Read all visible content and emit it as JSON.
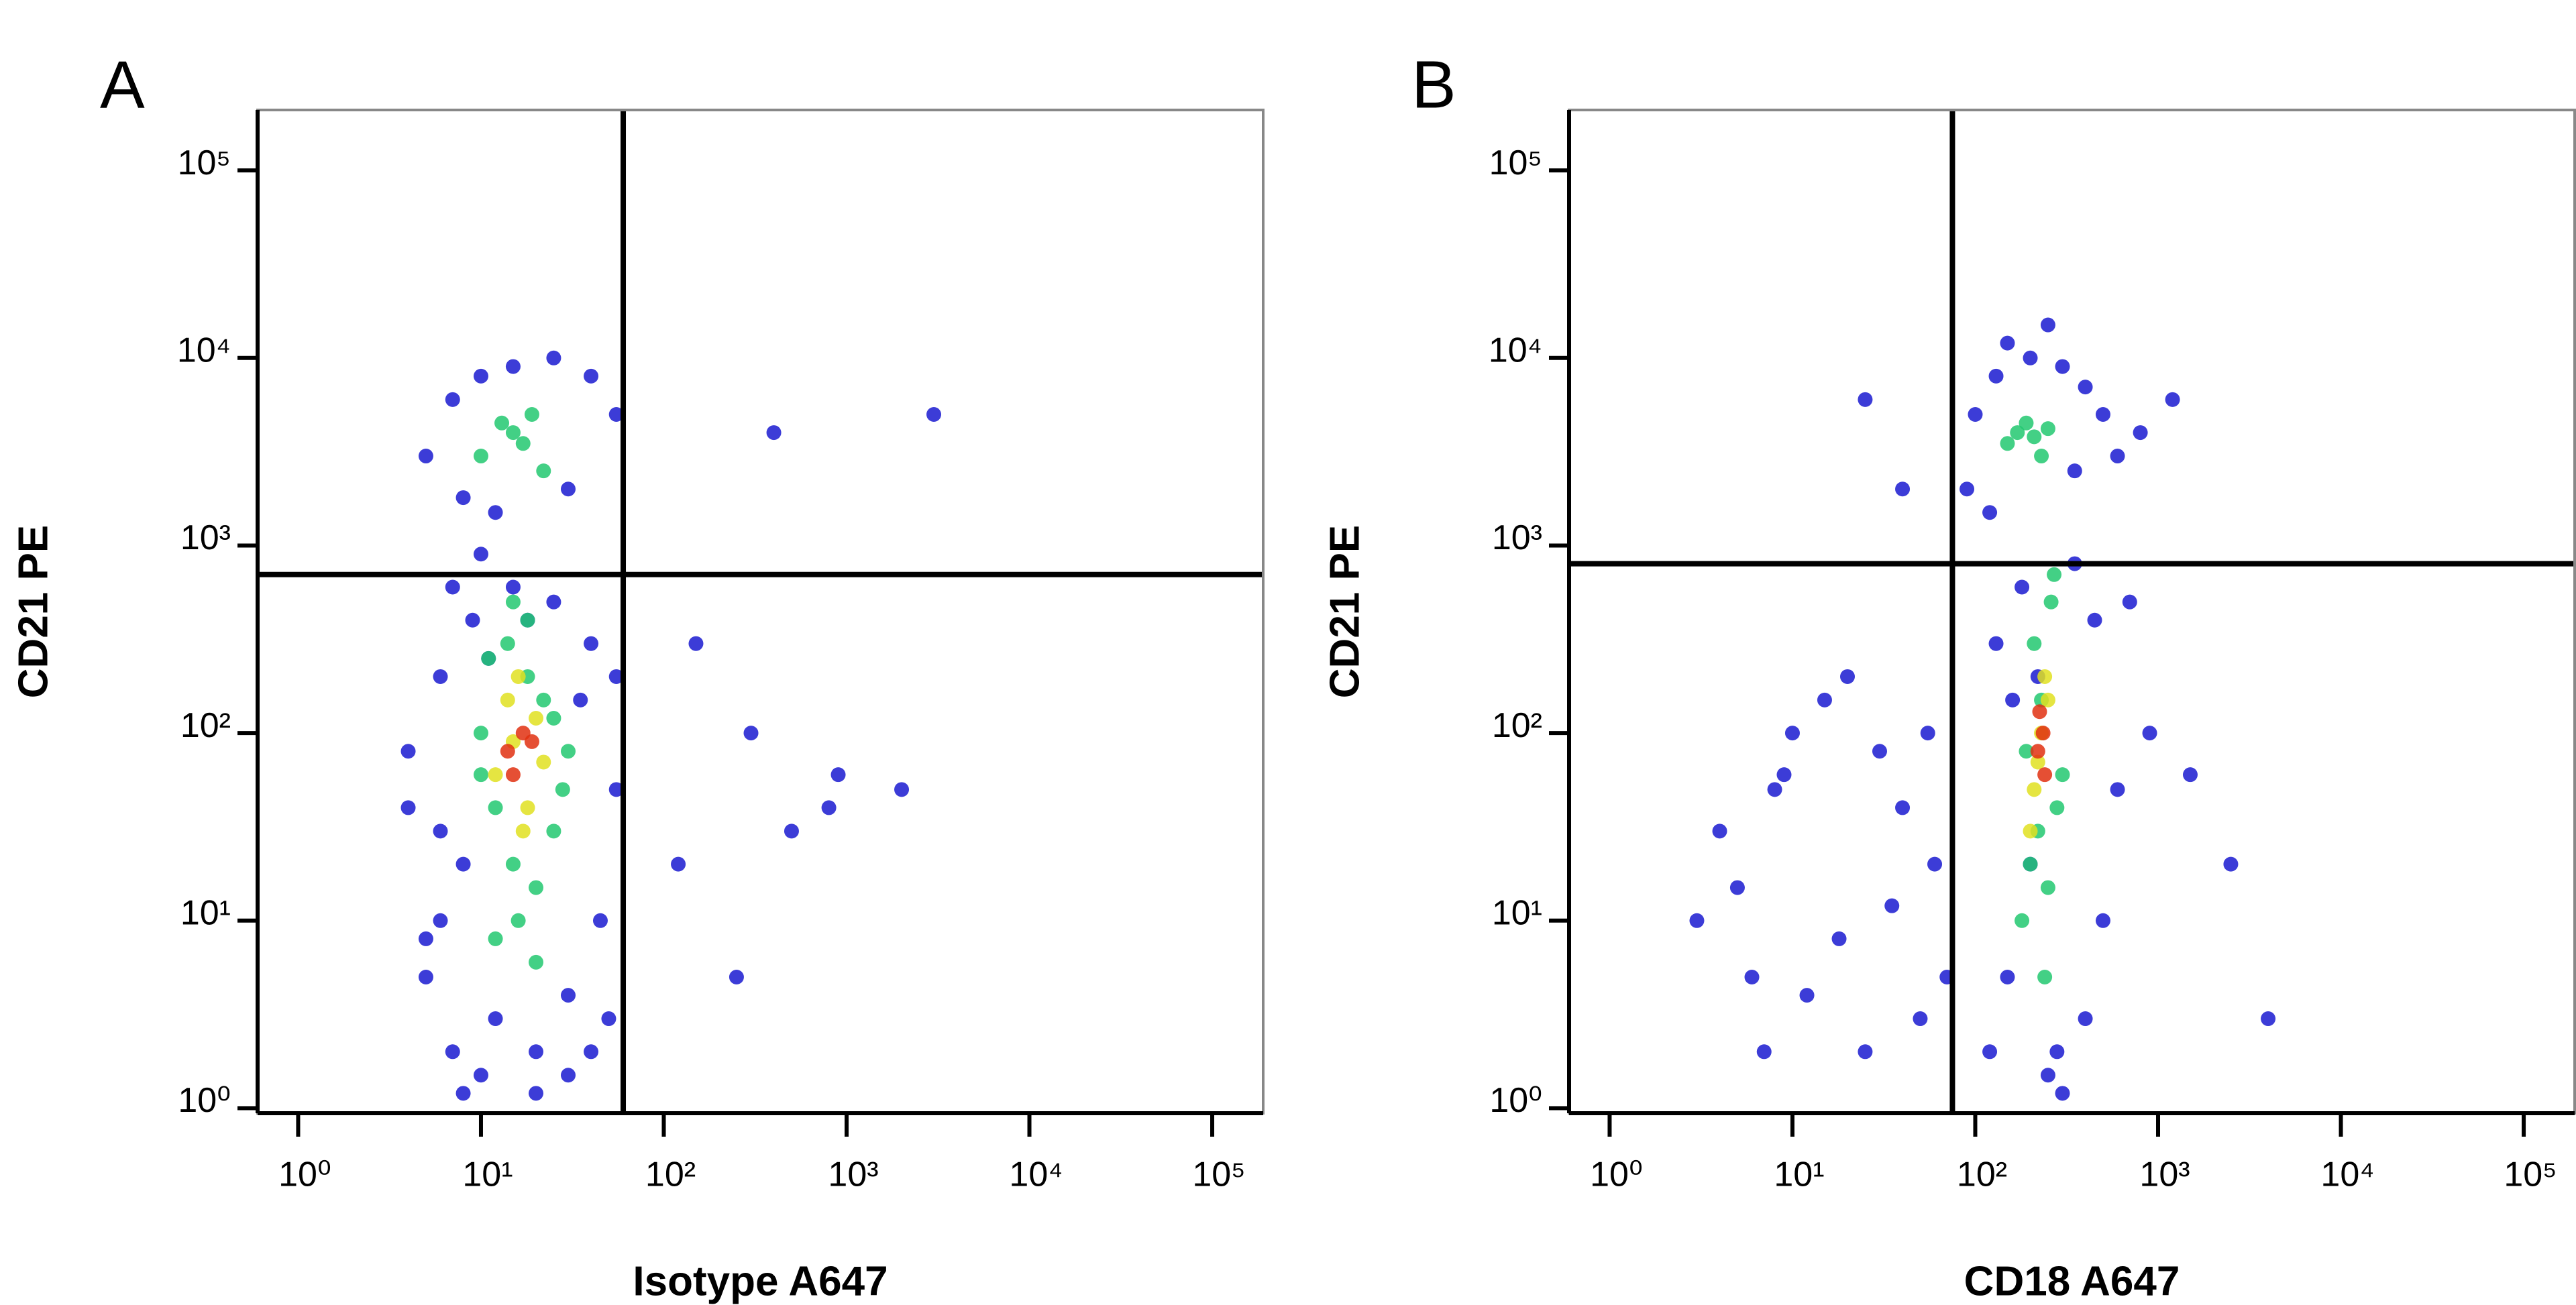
{
  "chart_data": [
    {
      "type": "scatter",
      "panel_label": "A",
      "xlabel": "Isotype A647",
      "ylabel": "CD21 PE",
      "log_x": true,
      "log_y": true,
      "xlim": [
        0.6,
        190000
      ],
      "ylim": [
        0.94,
        210000
      ],
      "xticks": [
        {
          "value": 1,
          "label": "10⁰"
        },
        {
          "value": 10,
          "label": "10¹"
        },
        {
          "value": 100,
          "label": "10²"
        },
        {
          "value": 1000,
          "label": "10³"
        },
        {
          "value": 10000,
          "label": "10⁴"
        },
        {
          "value": 100000,
          "label": "10⁵"
        }
      ],
      "yticks": [
        {
          "value": 1,
          "label": "10⁰"
        },
        {
          "value": 10,
          "label": "10¹"
        },
        {
          "value": 100,
          "label": "10²"
        },
        {
          "value": 1000,
          "label": "10³"
        },
        {
          "value": 10000,
          "label": "10⁴"
        },
        {
          "value": 100000,
          "label": "10⁵"
        }
      ],
      "quadrant": {
        "x": 60,
        "y": 700
      },
      "series": [
        {
          "color": "#1a1ad0",
          "x": [
            4,
            6,
            8,
            5,
            7,
            10,
            12,
            20,
            30,
            45,
            55,
            40,
            25,
            15,
            9,
            6,
            5,
            8,
            30,
            50,
            35,
            18,
            11,
            7,
            4,
            6,
            10,
            20,
            40,
            55,
            5,
            7,
            10,
            15,
            25,
            40,
            55,
            30,
            8,
            12,
            150,
            300,
            500,
            900,
            2000,
            120,
            250,
            800,
            400,
            3000
          ],
          "y": [
            80,
            200,
            20,
            5,
            2,
            1.5,
            3,
            2,
            4,
            10,
            50,
            300,
            500,
            600,
            400,
            30,
            8,
            1.2,
            1.5,
            3,
            150,
            400,
            250,
            600,
            40,
            10,
            900,
            1.2,
            2,
            200,
            3000,
            6000,
            8000,
            9000,
            10000,
            8000,
            5000,
            2000,
            1800,
            1500,
            300,
            100,
            30,
            60,
            50,
            20,
            5,
            40,
            4000,
            5000
          ]
        },
        {
          "color": "#22c870",
          "x": [
            10,
            12,
            15,
            20,
            25,
            30,
            18,
            14,
            10,
            22,
            28,
            16,
            12,
            20,
            15,
            11,
            18,
            25,
            10,
            13,
            17,
            22,
            15,
            19
          ],
          "y": [
            100,
            40,
            20,
            15,
            30,
            80,
            200,
            300,
            60,
            150,
            50,
            10,
            8,
            6,
            500,
            250,
            400,
            120,
            3000,
            4500,
            3500,
            2500,
            4000,
            5000
          ]
        },
        {
          "color": "#e0e020",
          "x": [
            12,
            15,
            18,
            20,
            14,
            17,
            22,
            16
          ],
          "y": [
            60,
            90,
            40,
            120,
            150,
            30,
            70,
            200
          ]
        },
        {
          "color": "#e03010",
          "x": [
            14,
            17,
            15,
            19
          ],
          "y": [
            80,
            100,
            60,
            90
          ]
        }
      ]
    },
    {
      "type": "scatter",
      "panel_label": "B",
      "xlabel": "CD18 A647",
      "ylabel": "CD21 PE",
      "log_x": true,
      "log_y": true,
      "xlim": [
        0.6,
        190000
      ],
      "ylim": [
        0.94,
        210000
      ],
      "xticks": [
        {
          "value": 1,
          "label": "10⁰"
        },
        {
          "value": 10,
          "label": "10¹"
        },
        {
          "value": 100,
          "label": "10²"
        },
        {
          "value": 1000,
          "label": "10³"
        },
        {
          "value": 10000,
          "label": "10⁴"
        },
        {
          "value": 100000,
          "label": "10⁵"
        }
      ],
      "yticks": [
        {
          "value": 1,
          "label": "10⁰"
        },
        {
          "value": 10,
          "label": "10¹"
        },
        {
          "value": 100,
          "label": "10²"
        },
        {
          "value": 1000,
          "label": "10³"
        },
        {
          "value": 10000,
          "label": "10⁴"
        },
        {
          "value": 100000,
          "label": "10⁵"
        }
      ],
      "quadrant": {
        "x": 75,
        "y": 800
      },
      "series": [
        {
          "color": "#1a1ad0",
          "x": [
            3,
            4,
            6,
            8,
            10,
            15,
            20,
            30,
            40,
            60,
            70,
            50,
            25,
            12,
            7,
            5,
            9,
            18,
            35,
            55,
            120,
            150,
            200,
            300,
            400,
            500,
            600,
            130,
            180,
            350,
            450,
            250,
            280,
            220,
            160,
            700,
            900,
            1500,
            2500,
            4000,
            90,
            100,
            130,
            200,
            300,
            400,
            500,
            600,
            150,
            250,
            350,
            120,
            800,
            1200,
            40,
            25
          ],
          "y": [
            10,
            30,
            5,
            50,
            100,
            150,
            200,
            80,
            40,
            20,
            5,
            3,
            2,
            4,
            2,
            15,
            60,
            8,
            12,
            100,
            2,
            5,
            20,
            1.2,
            3,
            10,
            50,
            300,
            600,
            800,
            400,
            1.5,
            2,
            200,
            150,
            500,
            100,
            60,
            20,
            3,
            2000,
            5000,
            8000,
            10000,
            9000,
            7000,
            5000,
            3000,
            12000,
            15000,
            2500,
            1500,
            4000,
            6000,
            2000,
            6000
          ]
        },
        {
          "color": "#22c870",
          "x": [
            180,
            200,
            220,
            250,
            280,
            300,
            230,
            210,
            260,
            190,
            240,
            270,
            150,
            170,
            190,
            210,
            230,
            250
          ],
          "y": [
            10,
            20,
            30,
            15,
            40,
            60,
            150,
            300,
            500,
            80,
            5,
            700,
            3500,
            4000,
            4500,
            3800,
            3000,
            4200
          ]
        },
        {
          "color": "#e0e020",
          "x": [
            210,
            230,
            250,
            220,
            240,
            200
          ],
          "y": [
            50,
            100,
            150,
            70,
            200,
            30
          ]
        },
        {
          "color": "#e03010",
          "x": [
            220,
            235,
            225,
            240
          ],
          "y": [
            80,
            100,
            130,
            60
          ]
        }
      ]
    }
  ]
}
